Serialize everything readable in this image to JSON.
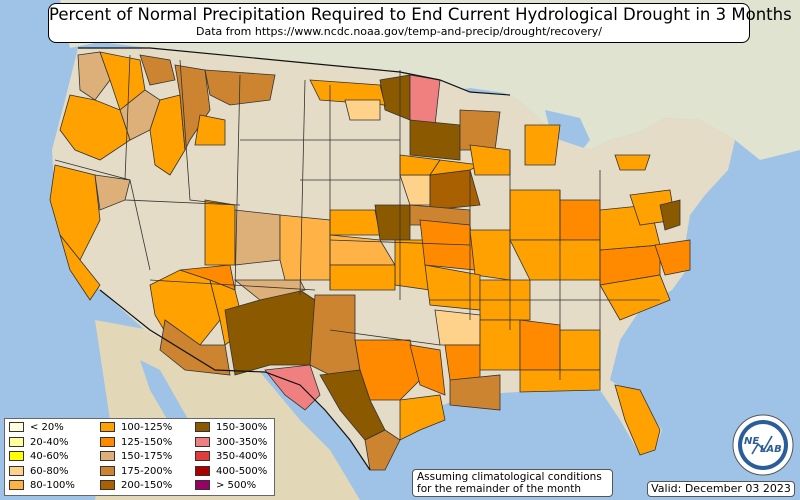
{
  "title": "Percent of Normal Precipitation Required to End Current Hydrological Drought in 3 Months",
  "subtitle": "Data from https://www.ncdc.noaa.gov/temp-and-precip/drought/recovery/",
  "legend": [
    {
      "label": "< 20%",
      "color": "#ffffdd"
    },
    {
      "label": "20-40%",
      "color": "#ffff9e"
    },
    {
      "label": "40-60%",
      "color": "#ffff00"
    },
    {
      "label": "60-80%",
      "color": "#ffd28c"
    },
    {
      "label": "80-100%",
      "color": "#ffb347"
    },
    {
      "label": "100-125%",
      "color": "#ffa100"
    },
    {
      "label": "125-150%",
      "color": "#ff8a00"
    },
    {
      "label": "150-175%",
      "color": "#ddb07a"
    },
    {
      "label": "175-200%",
      "color": "#cc8430"
    },
    {
      "label": "200-150%",
      "color": "#a86000"
    },
    {
      "label": "150-300%",
      "color": "#8b5a00"
    },
    {
      "label": "300-350%",
      "color": "#f08080"
    },
    {
      "label": "350-400%",
      "color": "#e03c3c"
    },
    {
      "label": "400-500%",
      "color": "#aa0000"
    },
    {
      "label": "> 500%",
      "color": "#990066"
    }
  ],
  "note_line1": "Assuming climatological conditions",
  "note_line2": "for the remainder of the month",
  "valid": "Valid: December 03 2023",
  "logo_text_1": "NE",
  "logo_text_2": "LAB",
  "colors": {
    "ocean": "#9fc3e6",
    "land": "#e4dcc6",
    "border": "#333333"
  }
}
